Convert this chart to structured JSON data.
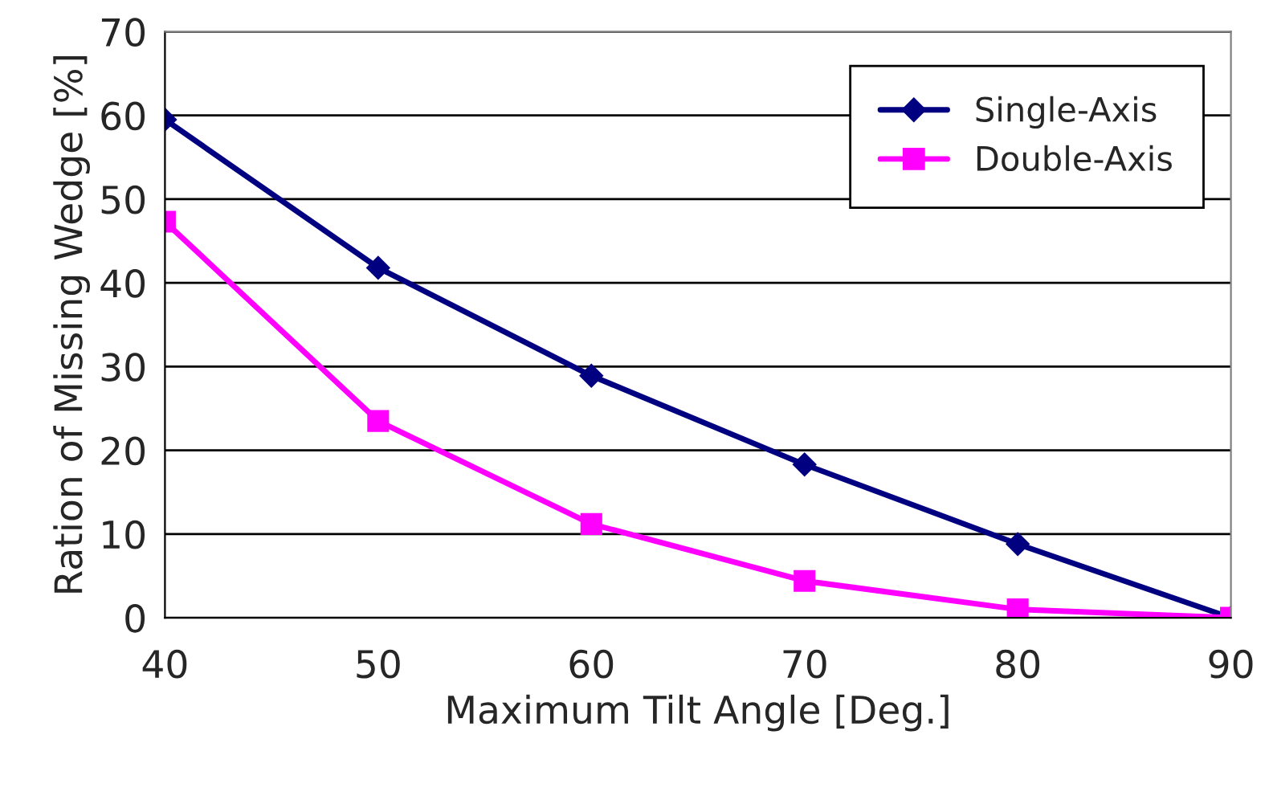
{
  "chart_data": {
    "type": "line",
    "xlabel": "Maximum Tilt Angle [Deg.]",
    "ylabel": "Ration of Missing Wedge [%]",
    "x": [
      40,
      50,
      60,
      70,
      80,
      90
    ],
    "series": [
      {
        "name": "Single-Axis",
        "color": "#000080",
        "marker": "diamond",
        "values": [
          59.5,
          41.8,
          28.9,
          18.3,
          8.8,
          0
        ]
      },
      {
        "name": "Double-Axis",
        "color": "#ff00ff",
        "marker": "square",
        "values": [
          47.3,
          23.5,
          11.2,
          4.4,
          1.0,
          0
        ]
      }
    ],
    "xlim": [
      40,
      90
    ],
    "xticks": [
      40,
      50,
      60,
      70,
      80,
      90
    ],
    "ylim": [
      0,
      70
    ],
    "yticks": [
      0,
      10,
      20,
      30,
      40,
      50,
      60,
      70
    ],
    "grid": "y",
    "legend": "top right",
    "line_style": "solid"
  }
}
